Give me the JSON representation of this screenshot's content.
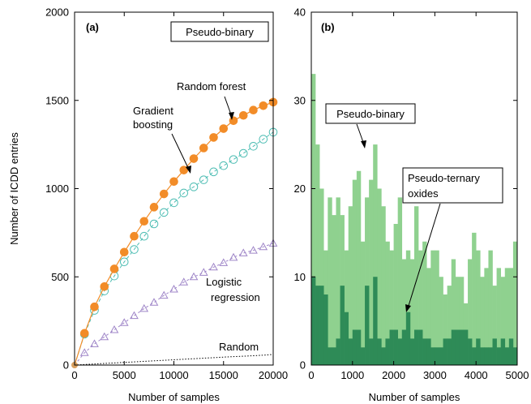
{
  "chart_data": [
    {
      "panel": "(a)",
      "type": "line",
      "xlabel": "Number of samples",
      "ylabel": "Number of ICDD entries",
      "xlim": [
        0,
        20000
      ],
      "ylim": [
        0,
        2000
      ],
      "xticks": [
        0,
        5000,
        10000,
        15000,
        20000
      ],
      "yticks": [
        0,
        500,
        1000,
        1500,
        2000
      ],
      "boxed_label": "Pseudo-binary",
      "annotations": [
        "Random forest",
        "Gradient boosting",
        "Logistic regression",
        "Random"
      ],
      "x": [
        0,
        1000,
        2000,
        3000,
        4000,
        5000,
        6000,
        7000,
        8000,
        9000,
        10000,
        11000,
        12000,
        13000,
        14000,
        15000,
        16000,
        17000,
        18000,
        19000,
        20000
      ],
      "series": [
        {
          "name": "Random forest",
          "marker": "filled-circle",
          "color": "#f28c28",
          "values": [
            0,
            180,
            330,
            445,
            545,
            640,
            730,
            815,
            895,
            970,
            1040,
            1105,
            1170,
            1230,
            1290,
            1340,
            1385,
            1415,
            1445,
            1470,
            1490
          ]
        },
        {
          "name": "Gradient boosting",
          "marker": "open-circle",
          "color": "#4dbdb3",
          "values": [
            0,
            175,
            310,
            420,
            505,
            585,
            655,
            730,
            800,
            865,
            920,
            975,
            1010,
            1050,
            1095,
            1130,
            1165,
            1200,
            1240,
            1280,
            1320
          ]
        },
        {
          "name": "Logistic regression",
          "marker": "open-triangle",
          "color": "#9f86c8",
          "values": [
            0,
            70,
            120,
            160,
            200,
            240,
            280,
            320,
            355,
            395,
            430,
            470,
            500,
            525,
            555,
            580,
            610,
            635,
            650,
            670,
            690
          ]
        },
        {
          "name": "Random",
          "marker": "none",
          "color": "#000000",
          "values": [
            0,
            3,
            6,
            9,
            12,
            15,
            18,
            21,
            24,
            27,
            30,
            33,
            36,
            39,
            42,
            45,
            48,
            50,
            53,
            56,
            60
          ]
        }
      ]
    },
    {
      "panel": "(b)",
      "type": "bar",
      "xlabel": "Number of samples",
      "ylabel": "",
      "xlim": [
        0,
        5000
      ],
      "ylim": [
        0,
        40
      ],
      "xticks": [
        0,
        1000,
        2000,
        3000,
        4000,
        5000
      ],
      "yticks": [
        0,
        10,
        20,
        30,
        40
      ],
      "bin_width": 100,
      "annotations": [
        "Pseudo-binary",
        "Pseudo-ternary oxides"
      ],
      "series": [
        {
          "name": "Pseudo-binary",
          "color": "#8fd18f",
          "values": [
            33,
            25,
            20,
            13,
            19,
            17,
            19,
            17,
            13,
            18,
            21,
            22,
            14,
            19,
            21,
            25,
            20,
            18,
            14,
            13,
            16,
            19,
            12,
            13,
            12,
            18,
            13,
            14,
            11,
            13,
            13,
            10,
            8,
            9,
            12,
            10,
            10,
            7,
            12,
            15,
            13,
            10,
            11,
            13,
            9,
            11,
            10,
            11,
            11,
            14
          ]
        },
        {
          "name": "Pseudo-ternary oxides",
          "color": "#2e8b57",
          "values": [
            10,
            9,
            9,
            8,
            2,
            2,
            3,
            9,
            6,
            3,
            4,
            4,
            2,
            9,
            3,
            10,
            3,
            2,
            3,
            4,
            4,
            3,
            4,
            6,
            3,
            4,
            4,
            3,
            3,
            2,
            2,
            2,
            3,
            3,
            4,
            4,
            4,
            4,
            3,
            2,
            3,
            2,
            2,
            2,
            3,
            2,
            3,
            2,
            3,
            2
          ]
        }
      ]
    }
  ]
}
